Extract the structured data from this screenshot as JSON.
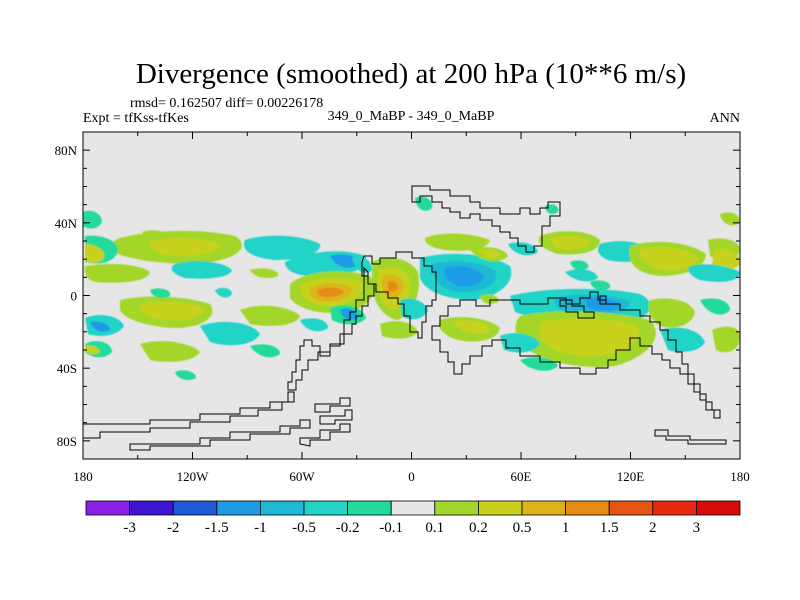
{
  "chart_data": {
    "type": "heatmap",
    "title": "Divergence (smoothed) at 200 hPa (10**6 m/s)",
    "stats": "rmsd= 0.162507 diff= 0.00226178",
    "experiment": "Expt = tfKss-tfKes",
    "case": "349_0_MaBP - 349_0_MaBP",
    "season": "ANN",
    "x_ticks": [
      "180",
      "120W",
      "60W",
      "0",
      "60E",
      "120E",
      "180"
    ],
    "x_values": [
      -180,
      -120,
      -60,
      0,
      60,
      120,
      180
    ],
    "y_ticks": [
      "80N",
      "40N",
      "0",
      "40S",
      "80S"
    ],
    "y_values": [
      80,
      40,
      0,
      -40,
      -80
    ],
    "xlim": [
      -180,
      180
    ],
    "ylim": [
      -90,
      90
    ],
    "colorbar": {
      "labels": [
        "-3",
        "-2",
        "-1.5",
        "-1",
        "-0.5",
        "-0.2",
        "-0.1",
        "0.1",
        "0.2",
        "0.5",
        "1",
        "1.5",
        "2",
        "3"
      ],
      "colors": [
        "#8a1fe6",
        "#3c14d2",
        "#1e5ad7",
        "#1e9be6",
        "#1fb9d4",
        "#24d3c8",
        "#22db9a",
        "#e6e6e6",
        "#a2d72b",
        "#c8d21e",
        "#dcb41a",
        "#e68c14",
        "#e65514",
        "#e62a0f",
        "#d70a0a"
      ]
    },
    "background_color": "#e6e6e6",
    "features": [
      {
        "name": "tropical-divergence-max-atlantic",
        "lon": -40,
        "lat": 2,
        "value": 1.5
      },
      {
        "name": "tropical-divergence-max-africa",
        "lon": -12,
        "lat": 5,
        "value": 1.0
      },
      {
        "name": "convergence-indian-ocean",
        "lon": 118,
        "lat": -6,
        "value": -0.5
      },
      {
        "name": "convergence-tropical-central",
        "lon": 30,
        "lat": 0,
        "value": -0.5
      },
      {
        "name": "divergence-south-indian",
        "lon": 95,
        "lat": -22,
        "value": 0.5
      },
      {
        "name": "midlatitude-wave-band-north",
        "lon": -110,
        "lat": 30,
        "value": 0.5
      },
      {
        "name": "midlatitude-wave-band-south",
        "lon": -80,
        "lat": -25,
        "value": -0.5
      }
    ]
  }
}
